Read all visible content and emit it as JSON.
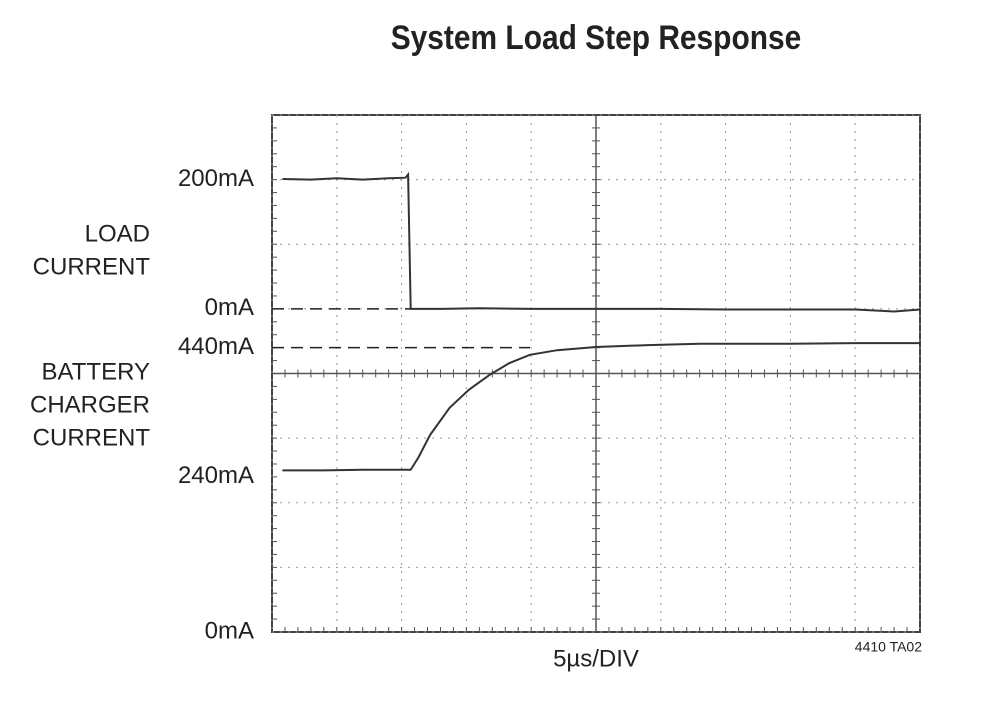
{
  "chart_data": {
    "type": "line",
    "title": "System Load Step Response",
    "xlabel": "5µs/DIV",
    "note": "4410 TA02",
    "xlim": [
      0,
      50
    ],
    "xticks": [
      0,
      5,
      10,
      15,
      20,
      25,
      30,
      35,
      40,
      45,
      50
    ],
    "ylim": [
      0,
      8
    ],
    "yticks": [
      0,
      1,
      2,
      3,
      4,
      5,
      6,
      7,
      8
    ],
    "grid": true,
    "series": [
      {
        "label": [
          "LOAD",
          "CURRENT"
        ],
        "color": "#333333",
        "ylim": [
          -500,
          300
        ],
        "yticks": [
          {
            "value": 200,
            "label": "200mA"
          },
          {
            "value": 0,
            "label": "0mA",
            "dashed": true
          }
        ],
        "x": [
          0.8,
          3,
          5,
          7,
          9,
          10.3,
          10.5,
          10.7,
          10.9,
          13,
          16,
          20,
          25,
          30,
          35,
          40,
          45,
          48,
          50
        ],
        "values": [
          201,
          200,
          202,
          200,
          202,
          203,
          208,
          0,
          0,
          0,
          1,
          0,
          0,
          0,
          -1,
          -1,
          -1,
          -4,
          -1
        ]
      },
      {
        "label": [
          "BATTERY",
          "CHARGER",
          "CURRENT"
        ],
        "color": "#333333",
        "ylim": [
          0,
          800
        ],
        "yticks": [
          {
            "value": 440,
            "label": "440mA",
            "dashed": true
          },
          {
            "value": 240,
            "label": "240mA"
          },
          {
            "value": 0,
            "label": "0mA"
          }
        ],
        "x": [
          0.8,
          4,
          7,
          10.7,
          11.3,
          12.2,
          13.7,
          15.2,
          16.8,
          18.3,
          19.9,
          22,
          25,
          29,
          33,
          40,
          45,
          50
        ],
        "values": [
          250,
          250,
          251,
          251,
          270,
          305,
          347,
          375,
          398,
          416,
          429,
          436,
          441,
          444,
          446,
          446,
          447,
          447
        ]
      }
    ]
  }
}
